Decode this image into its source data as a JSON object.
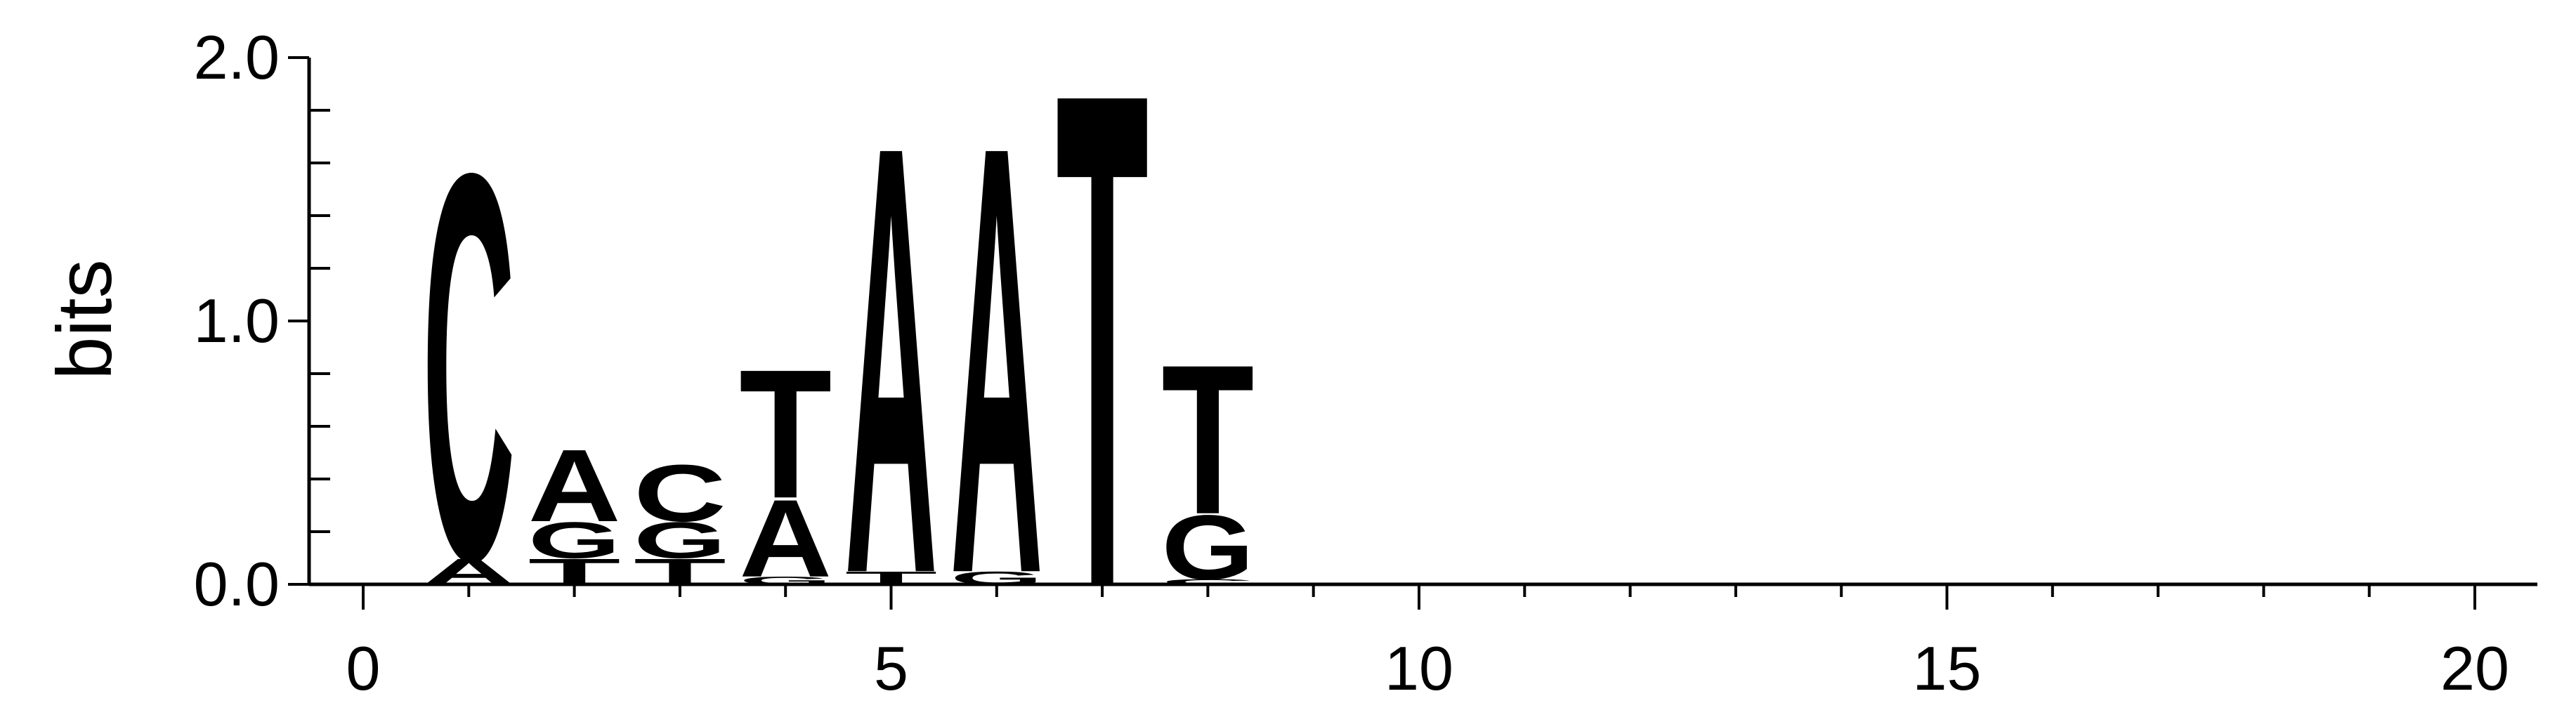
{
  "chart_data": {
    "type": "sequence-logo",
    "title": "",
    "xlabel": "",
    "ylabel": "bits",
    "xlim": [
      0,
      20
    ],
    "ylim": [
      0,
      2
    ],
    "x_ticks": [
      0,
      5,
      10,
      15,
      20
    ],
    "x_tick_labels": [
      "0",
      "5",
      "10",
      "15",
      "20"
    ],
    "y_ticks": [
      0,
      1,
      2
    ],
    "y_tick_labels": [
      "0.0",
      "1.0",
      "2.0"
    ],
    "colors": {
      "A": "#008000",
      "C": "#0000ff",
      "G": "#ffa500",
      "T": "#ff0000"
    },
    "positions": [
      {
        "pos": 1,
        "letters": [
          {
            "letter": "A",
            "bits": 0.1
          },
          {
            "letter": "C",
            "bits": 1.5
          }
        ]
      },
      {
        "pos": 2,
        "letters": [
          {
            "letter": "T",
            "bits": 0.1
          },
          {
            "letter": "G",
            "bits": 0.14
          },
          {
            "letter": "A",
            "bits": 0.28
          }
        ]
      },
      {
        "pos": 3,
        "letters": [
          {
            "letter": "T",
            "bits": 0.1
          },
          {
            "letter": "G",
            "bits": 0.14
          },
          {
            "letter": "C",
            "bits": 0.22
          }
        ]
      },
      {
        "pos": 4,
        "letters": [
          {
            "letter": "G",
            "bits": 0.03
          },
          {
            "letter": "A",
            "bits": 0.3
          },
          {
            "letter": "T",
            "bits": 0.5
          }
        ]
      },
      {
        "pos": 5,
        "letters": [
          {
            "letter": "T",
            "bits": 0.05
          },
          {
            "letter": "A",
            "bits": 1.66
          }
        ]
      },
      {
        "pos": 6,
        "letters": [
          {
            "letter": "G",
            "bits": 0.05
          },
          {
            "letter": "A",
            "bits": 1.66
          }
        ]
      },
      {
        "pos": 7,
        "letters": [
          {
            "letter": "T",
            "bits": 1.92
          }
        ]
      },
      {
        "pos": 8,
        "letters": [
          {
            "letter": "C",
            "bits": 0.02
          },
          {
            "letter": "G",
            "bits": 0.25
          },
          {
            "letter": "T",
            "bits": 0.58
          }
        ]
      }
    ]
  }
}
